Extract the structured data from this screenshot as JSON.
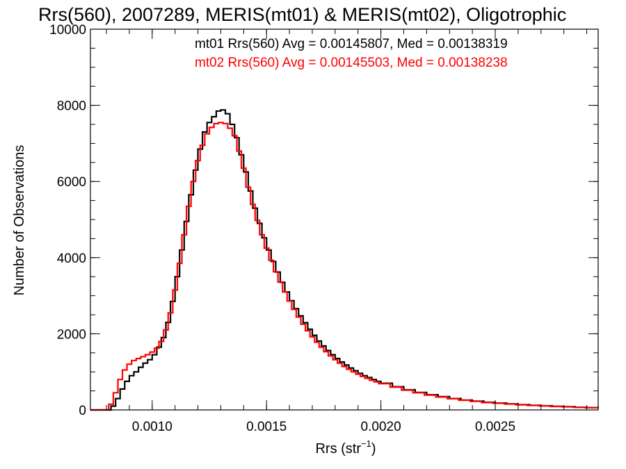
{
  "chart_data": {
    "type": "line",
    "title": "Rrs(560), 2007289, MERIS(mt01) & MERIS(mt02), Oligotrophic",
    "xlabel_main": "Rrs (str",
    "xlabel_sup": "−1",
    "xlabel_close": ")",
    "ylabel": "Number of Observations",
    "xlim": [
      0.00073,
      0.00295
    ],
    "ylim": [
      0,
      10000
    ],
    "x_ticks": [
      {
        "value": 0.001,
        "label": "0.0010"
      },
      {
        "value": 0.0015,
        "label": "0.0015"
      },
      {
        "value": 0.002,
        "label": "0.0020"
      },
      {
        "value": 0.0025,
        "label": "0.0025"
      }
    ],
    "y_ticks": [
      {
        "value": 0,
        "label": "0"
      },
      {
        "value": 2000,
        "label": "2000"
      },
      {
        "value": 4000,
        "label": "4000"
      },
      {
        "value": 6000,
        "label": "6000"
      },
      {
        "value": 8000,
        "label": "8000"
      },
      {
        "value": 10000,
        "label": "10000"
      }
    ],
    "x_minor_step": 0.0001,
    "y_minor_step": 500,
    "grid": false,
    "series": [
      {
        "name": "mt01",
        "color": "#000000",
        "legend": "mt01 Rrs(560) Avg = 0.00145807, Med = 0.00138319",
        "points": [
          [
            0.00073,
            0
          ],
          [
            0.0008,
            0
          ],
          [
            0.00082,
            100
          ],
          [
            0.00084,
            300
          ],
          [
            0.00086,
            550
          ],
          [
            0.00088,
            750
          ],
          [
            0.0009,
            900
          ],
          [
            0.00092,
            1000
          ],
          [
            0.00094,
            1120
          ],
          [
            0.00096,
            1230
          ],
          [
            0.00098,
            1320
          ],
          [
            0.001,
            1450
          ],
          [
            0.00102,
            1650
          ],
          [
            0.00104,
            1900
          ],
          [
            0.00106,
            2300
          ],
          [
            0.00108,
            2850
          ],
          [
            0.0011,
            3500
          ],
          [
            0.00112,
            4200
          ],
          [
            0.00114,
            4950
          ],
          [
            0.00116,
            5650
          ],
          [
            0.00118,
            6300
          ],
          [
            0.0012,
            6850
          ],
          [
            0.00122,
            7300
          ],
          [
            0.00124,
            7550
          ],
          [
            0.00126,
            7700
          ],
          [
            0.00128,
            7850
          ],
          [
            0.0013,
            7880
          ],
          [
            0.00132,
            7780
          ],
          [
            0.00134,
            7500
          ],
          [
            0.00136,
            7150
          ],
          [
            0.00138,
            6700
          ],
          [
            0.0014,
            6250
          ],
          [
            0.00142,
            5750
          ],
          [
            0.00144,
            5300
          ],
          [
            0.00146,
            4900
          ],
          [
            0.00148,
            4520
          ],
          [
            0.0015,
            4200
          ],
          [
            0.00152,
            3900
          ],
          [
            0.00154,
            3620
          ],
          [
            0.00156,
            3350
          ],
          [
            0.00158,
            3100
          ],
          [
            0.0016,
            2870
          ],
          [
            0.00162,
            2660
          ],
          [
            0.00164,
            2470
          ],
          [
            0.00166,
            2290
          ],
          [
            0.00168,
            2120
          ],
          [
            0.0017,
            1960
          ],
          [
            0.00172,
            1810
          ],
          [
            0.00174,
            1680
          ],
          [
            0.00176,
            1560
          ],
          [
            0.00178,
            1450
          ],
          [
            0.0018,
            1350
          ],
          [
            0.00182,
            1260
          ],
          [
            0.00184,
            1180
          ],
          [
            0.00186,
            1100
          ],
          [
            0.00188,
            1030
          ],
          [
            0.0019,
            960
          ],
          [
            0.00192,
            900
          ],
          [
            0.00194,
            850
          ],
          [
            0.00196,
            800
          ],
          [
            0.00198,
            750
          ],
          [
            0.002,
            700
          ],
          [
            0.00205,
            610
          ],
          [
            0.0021,
            530
          ],
          [
            0.00215,
            460
          ],
          [
            0.0022,
            400
          ],
          [
            0.00225,
            350
          ],
          [
            0.0023,
            300
          ],
          [
            0.00235,
            260
          ],
          [
            0.0024,
            230
          ],
          [
            0.00245,
            200
          ],
          [
            0.0025,
            180
          ],
          [
            0.00255,
            160
          ],
          [
            0.0026,
            140
          ],
          [
            0.00265,
            120
          ],
          [
            0.0027,
            110
          ],
          [
            0.00275,
            95
          ],
          [
            0.0028,
            85
          ],
          [
            0.00285,
            70
          ],
          [
            0.0029,
            60
          ],
          [
            0.00295,
            50
          ]
        ]
      },
      {
        "name": "mt02",
        "color": "#ff0000",
        "legend": "mt02 Rrs(560) Avg = 0.00145503, Med = 0.00138238",
        "points": [
          [
            0.00073,
            0
          ],
          [
            0.00079,
            0
          ],
          [
            0.00081,
            150
          ],
          [
            0.00083,
            450
          ],
          [
            0.00085,
            800
          ],
          [
            0.00087,
            1050
          ],
          [
            0.00089,
            1200
          ],
          [
            0.00091,
            1300
          ],
          [
            0.00093,
            1350
          ],
          [
            0.00095,
            1400
          ],
          [
            0.00097,
            1450
          ],
          [
            0.00099,
            1520
          ],
          [
            0.00101,
            1620
          ],
          [
            0.00103,
            1800
          ],
          [
            0.00105,
            2100
          ],
          [
            0.00107,
            2550
          ],
          [
            0.00109,
            3150
          ],
          [
            0.00111,
            3850
          ],
          [
            0.00113,
            4600
          ],
          [
            0.00115,
            5350
          ],
          [
            0.00117,
            6000
          ],
          [
            0.00119,
            6550
          ],
          [
            0.00121,
            6950
          ],
          [
            0.00123,
            7250
          ],
          [
            0.00125,
            7420
          ],
          [
            0.00127,
            7520
          ],
          [
            0.00129,
            7550
          ],
          [
            0.00131,
            7520
          ],
          [
            0.00133,
            7400
          ],
          [
            0.00135,
            7200
          ],
          [
            0.00137,
            6800
          ],
          [
            0.00139,
            6350
          ],
          [
            0.00141,
            5850
          ],
          [
            0.00143,
            5400
          ],
          [
            0.00145,
            4980
          ],
          [
            0.00147,
            4600
          ],
          [
            0.00149,
            4250
          ],
          [
            0.00151,
            3930
          ],
          [
            0.00153,
            3630
          ],
          [
            0.00155,
            3360
          ],
          [
            0.00157,
            3100
          ],
          [
            0.00159,
            2860
          ],
          [
            0.00161,
            2640
          ],
          [
            0.00163,
            2440
          ],
          [
            0.00165,
            2250
          ],
          [
            0.00167,
            2080
          ],
          [
            0.00169,
            1920
          ],
          [
            0.00171,
            1780
          ],
          [
            0.00173,
            1650
          ],
          [
            0.00175,
            1530
          ],
          [
            0.00177,
            1420
          ],
          [
            0.00179,
            1320
          ],
          [
            0.00181,
            1230
          ],
          [
            0.00183,
            1140
          ],
          [
            0.00185,
            1070
          ],
          [
            0.00187,
            1000
          ],
          [
            0.00189,
            940
          ],
          [
            0.00191,
            880
          ],
          [
            0.00193,
            830
          ],
          [
            0.00195,
            780
          ],
          [
            0.00197,
            735
          ],
          [
            0.00199,
            690
          ],
          [
            0.00204,
            600
          ],
          [
            0.00209,
            520
          ],
          [
            0.00214,
            450
          ],
          [
            0.00219,
            390
          ],
          [
            0.00224,
            340
          ],
          [
            0.00229,
            295
          ],
          [
            0.00234,
            255
          ],
          [
            0.00239,
            225
          ],
          [
            0.00244,
            195
          ],
          [
            0.00249,
            175
          ],
          [
            0.00254,
            155
          ],
          [
            0.00259,
            135
          ],
          [
            0.00264,
            118
          ],
          [
            0.00269,
            105
          ],
          [
            0.00274,
            92
          ],
          [
            0.00279,
            82
          ],
          [
            0.00284,
            70
          ],
          [
            0.00289,
            58
          ],
          [
            0.00295,
            45
          ]
        ]
      }
    ]
  }
}
